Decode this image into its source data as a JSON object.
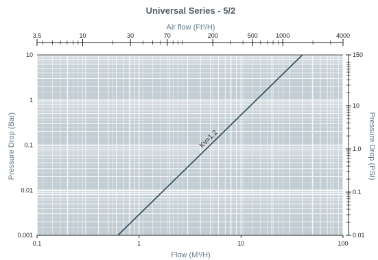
{
  "chart_data": {
    "type": "line",
    "title": "Universal Series - 5/2",
    "xlabel": "Flow (M³/H)",
    "ylabel": "Pressure Drop (Bar)",
    "x2label": "Air flow (Ft³/H)",
    "y2label": "Pressure Drop (PSI)",
    "xscale": "log",
    "yscale": "log",
    "xlim": [
      0.1,
      100
    ],
    "ylim": [
      0.001,
      10
    ],
    "x2lim": [
      3.5,
      4000
    ],
    "y2lim": [
      0.01,
      150
    ],
    "grid": true,
    "x_ticks": [
      "0.1",
      "1",
      "10",
      "100"
    ],
    "y_ticks": [
      "0.001",
      "0.01",
      "0.1",
      "1",
      "10"
    ],
    "x2_ticks": [
      "3.5",
      "10",
      "30",
      "70",
      "200",
      "500",
      "1000",
      "4000"
    ],
    "y2_ticks": [
      "0.01",
      "0.1",
      "1.0",
      "10",
      "150"
    ],
    "series": [
      {
        "name": "Kv=1.2",
        "x": [
          0.62,
          40
        ],
        "y": [
          0.001,
          10
        ]
      }
    ],
    "colors": {
      "plot_background": "#c3ced4",
      "grid": "#ffffff",
      "line": "#2c4b57",
      "title": "#4f5b64",
      "axis_label": "#5f7889"
    }
  }
}
